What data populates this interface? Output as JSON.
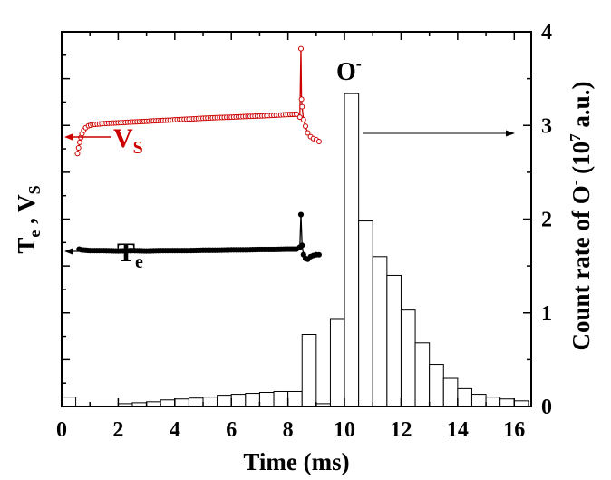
{
  "chart_data": {
    "type": "bar",
    "title": "",
    "xlabel": "Time (ms)",
    "ylabel_left": {
      "main": "T",
      "sub1": "e",
      "sep": " , V",
      "sub2": "S"
    },
    "ylabel_right": {
      "p1": "Count rate of O",
      "sup1": "-",
      "p2": " (10",
      "sup2": "7",
      "p3": " a.u.)"
    },
    "xlim": [
      0,
      16.6
    ],
    "ylim_right": [
      0,
      4
    ],
    "x_ticks": [
      "0",
      "2",
      "4",
      "6",
      "8",
      "10",
      "12",
      "14",
      "16"
    ],
    "y_right_ticks": [
      "0",
      "1",
      "2",
      "3",
      "4"
    ],
    "grid": false,
    "histogram": {
      "name": "O-",
      "bin_width": 0.5,
      "bins": [
        {
          "x0": 0.0,
          "v": 0.1
        },
        {
          "x0": 0.5,
          "v": 0.0
        },
        {
          "x0": 1.0,
          "v": 0.0
        },
        {
          "x0": 1.5,
          "v": 0.0
        },
        {
          "x0": 2.0,
          "v": 0.03
        },
        {
          "x0": 2.5,
          "v": 0.04
        },
        {
          "x0": 3.0,
          "v": 0.05
        },
        {
          "x0": 3.5,
          "v": 0.07
        },
        {
          "x0": 4.0,
          "v": 0.08
        },
        {
          "x0": 4.5,
          "v": 0.09
        },
        {
          "x0": 5.0,
          "v": 0.1
        },
        {
          "x0": 5.5,
          "v": 0.12
        },
        {
          "x0": 6.0,
          "v": 0.13
        },
        {
          "x0": 6.5,
          "v": 0.14
        },
        {
          "x0": 7.0,
          "v": 0.15
        },
        {
          "x0": 7.5,
          "v": 0.16
        },
        {
          "x0": 8.0,
          "v": 0.16
        },
        {
          "x0": 8.5,
          "v": 0.77
        },
        {
          "x0": 9.0,
          "v": 0.03
        },
        {
          "x0": 9.5,
          "v": 0.93
        },
        {
          "x0": 10.0,
          "v": 3.34
        },
        {
          "x0": 10.5,
          "v": 1.98
        },
        {
          "x0": 11.0,
          "v": 1.6
        },
        {
          "x0": 11.5,
          "v": 1.4
        },
        {
          "x0": 12.0,
          "v": 1.03
        },
        {
          "x0": 12.5,
          "v": 0.68
        },
        {
          "x0": 13.0,
          "v": 0.45
        },
        {
          "x0": 13.5,
          "v": 0.3
        },
        {
          "x0": 14.0,
          "v": 0.19
        },
        {
          "x0": 14.5,
          "v": 0.13
        },
        {
          "x0": 15.0,
          "v": 0.1
        },
        {
          "x0": 15.5,
          "v": 0.08
        },
        {
          "x0": 16.0,
          "v": 0.06
        }
      ]
    },
    "left_axis_range": [
      0,
      1
    ],
    "series": [
      {
        "name": "VS",
        "color": "#cc0000",
        "marker": "open-circle",
        "points": [
          [
            0.56,
            0.675
          ],
          [
            0.6,
            0.69
          ],
          [
            0.64,
            0.705
          ],
          [
            0.68,
            0.718
          ],
          [
            0.72,
            0.728
          ],
          [
            0.78,
            0.737
          ],
          [
            0.85,
            0.744
          ],
          [
            0.95,
            0.749
          ],
          [
            1.1,
            0.752
          ],
          [
            1.5,
            0.755
          ],
          [
            2.0,
            0.757
          ],
          [
            2.5,
            0.759
          ],
          [
            3.0,
            0.761
          ],
          [
            3.5,
            0.763
          ],
          [
            4.0,
            0.765
          ],
          [
            4.5,
            0.767
          ],
          [
            5.0,
            0.769
          ],
          [
            5.5,
            0.771
          ],
          [
            6.0,
            0.772
          ],
          [
            6.5,
            0.774
          ],
          [
            7.0,
            0.775
          ],
          [
            7.5,
            0.777
          ],
          [
            8.0,
            0.779
          ],
          [
            8.3,
            0.78
          ],
          [
            8.42,
            0.772
          ],
          [
            8.46,
            0.955
          ],
          [
            8.48,
            0.82
          ],
          [
            8.5,
            0.8
          ],
          [
            8.55,
            0.765
          ],
          [
            8.62,
            0.748
          ],
          [
            8.7,
            0.73
          ],
          [
            8.8,
            0.72
          ],
          [
            8.9,
            0.715
          ],
          [
            9.0,
            0.712
          ],
          [
            9.1,
            0.707
          ]
        ]
      },
      {
        "name": "Te",
        "color": "#000000",
        "marker": "filled-circle",
        "points": [
          [
            0.62,
            0.42
          ],
          [
            0.7,
            0.418
          ],
          [
            1.0,
            0.416
          ],
          [
            1.5,
            0.416
          ],
          [
            2.0,
            0.415
          ],
          [
            2.5,
            0.416
          ],
          [
            3.0,
            0.415
          ],
          [
            3.5,
            0.416
          ],
          [
            4.0,
            0.416
          ],
          [
            4.5,
            0.416
          ],
          [
            5.0,
            0.417
          ],
          [
            5.5,
            0.417
          ],
          [
            6.0,
            0.418
          ],
          [
            6.5,
            0.418
          ],
          [
            7.0,
            0.419
          ],
          [
            7.5,
            0.419
          ],
          [
            8.0,
            0.42
          ],
          [
            8.3,
            0.42
          ],
          [
            8.42,
            0.425
          ],
          [
            8.46,
            0.512
          ],
          [
            8.5,
            0.43
          ],
          [
            8.55,
            0.405
          ],
          [
            8.62,
            0.395
          ],
          [
            8.7,
            0.393
          ],
          [
            8.8,
            0.4
          ],
          [
            8.9,
            0.403
          ],
          [
            9.0,
            0.405
          ],
          [
            9.1,
            0.405
          ]
        ]
      }
    ],
    "annotations": {
      "vs_label": {
        "main": "V",
        "sub": "S"
      },
      "te_label": {
        "main": "T",
        "sub": "e"
      },
      "o_label": {
        "main": "O",
        "sup": "-"
      }
    }
  }
}
